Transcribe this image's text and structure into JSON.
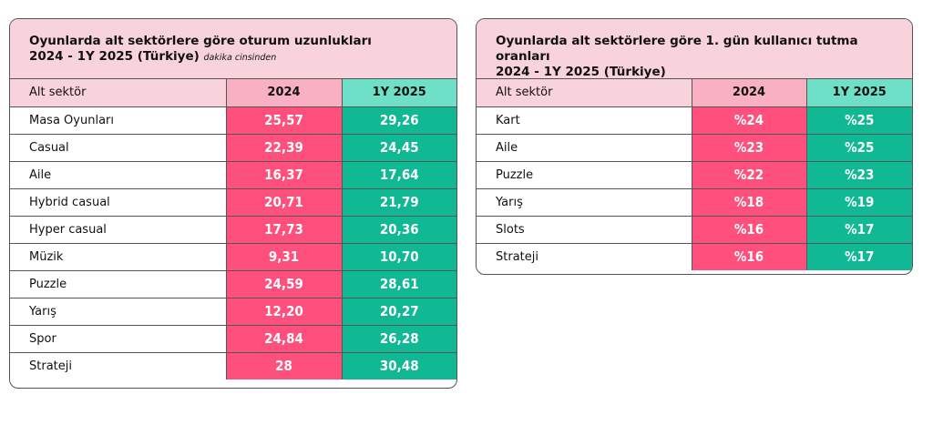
{
  "left": {
    "title_line1": "Oyunlarda alt sektörlere göre oturum uzunlukları",
    "title_line2": "2024 - 1Y 2025 (Türkiye)",
    "unit_note": "dakika cinsinden",
    "headers": {
      "sector": "Alt sektör",
      "y2024": "2024",
      "y2025": "1Y 2025"
    },
    "rows": [
      {
        "sector": "Masa Oyunları",
        "y2024": "25,57",
        "y2025": "29,26"
      },
      {
        "sector": "Casual",
        "y2024": "22,39",
        "y2025": "24,45"
      },
      {
        "sector": "Aile",
        "y2024": "16,37",
        "y2025": "17,64"
      },
      {
        "sector": "Hybrid casual",
        "y2024": "20,71",
        "y2025": "21,79"
      },
      {
        "sector": "Hyper casual",
        "y2024": "17,73",
        "y2025": "20,36"
      },
      {
        "sector": "Müzik",
        "y2024": "9,31",
        "y2025": "10,70"
      },
      {
        "sector": "Puzzle",
        "y2024": "24,59",
        "y2025": "28,61"
      },
      {
        "sector": "Yarış",
        "y2024": "12,20",
        "y2025": "20,27"
      },
      {
        "sector": "Spor",
        "y2024": "24,84",
        "y2025": "26,28"
      },
      {
        "sector": "Strateji",
        "y2024": "28",
        "y2025": "30,48"
      }
    ]
  },
  "right": {
    "title_line1": "Oyunlarda alt sektörlere göre 1. gün kullanıcı tutma oranları",
    "title_line2": "2024 - 1Y 2025 (Türkiye)",
    "headers": {
      "sector": "Alt sektör",
      "y2024": "2024",
      "y2025": "1Y 2025"
    },
    "rows": [
      {
        "sector": "Kart",
        "y2024": "%24",
        "y2025": "%25"
      },
      {
        "sector": "Aile",
        "y2024": "%23",
        "y2025": "%25"
      },
      {
        "sector": "Puzzle",
        "y2024": "%22",
        "y2025": "%23"
      },
      {
        "sector": "Yarış",
        "y2024": "%18",
        "y2025": "%19"
      },
      {
        "sector": "Slots",
        "y2024": "%16",
        "y2025": "%17"
      },
      {
        "sector": "Strateji",
        "y2024": "%16",
        "y2025": "%17"
      }
    ]
  },
  "colors": {
    "header_pink": "#f9d3dc",
    "col2024_header": "#f8b0c2",
    "col2025_header": "#6ee0c8",
    "cell_2024": "#ff4f7d",
    "cell_2025": "#10b894"
  }
}
